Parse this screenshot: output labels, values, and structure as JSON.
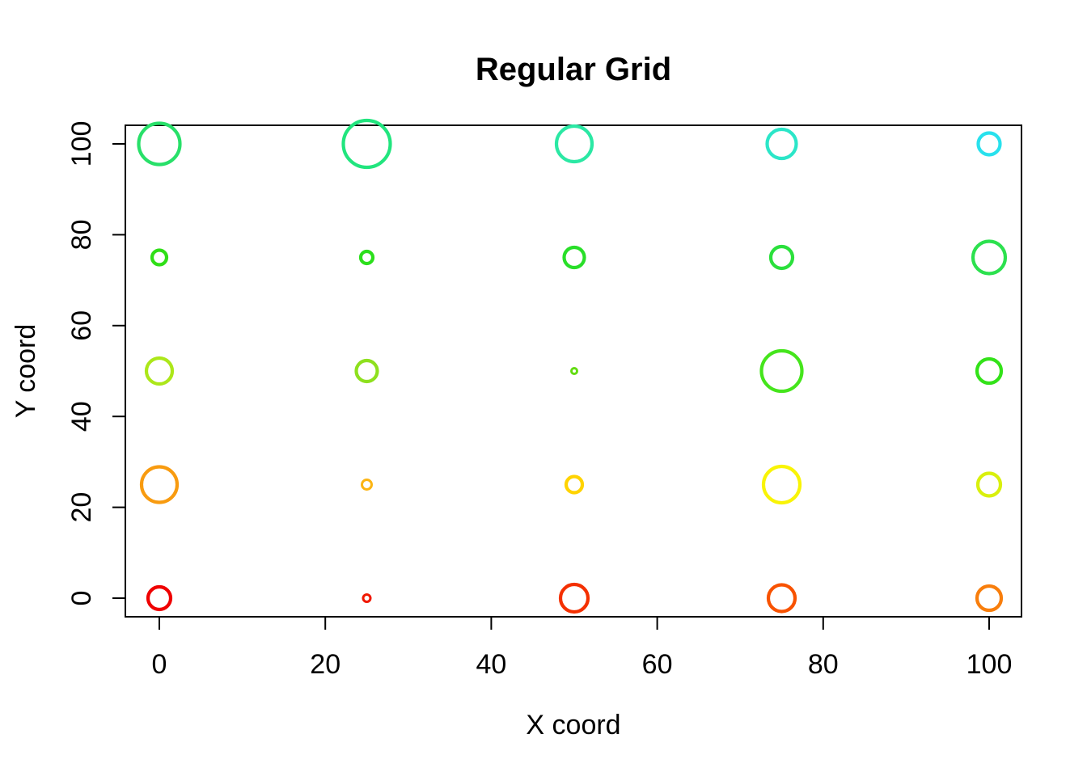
{
  "figure": {
    "title": "Regular Grid",
    "xlabel": "X coord",
    "ylabel": "Y coord",
    "background_color": "#FFFFFF",
    "axis_color": "#000000"
  },
  "chart_data": {
    "type": "scatter",
    "subtype": "bubble",
    "title": "Regular Grid",
    "xlabel": "X coord",
    "ylabel": "Y coord",
    "xlim": [
      0,
      100
    ],
    "ylim": [
      0,
      100
    ],
    "x_ticks": [
      0,
      20,
      40,
      60,
      80,
      100
    ],
    "y_ticks": [
      0,
      20,
      40,
      60,
      80,
      100
    ],
    "grid": false,
    "legend": "none",
    "marker": "open-circle",
    "points": [
      {
        "x": 0,
        "y": 0,
        "radius_px": 14,
        "color": "#EF0000"
      },
      {
        "x": 25,
        "y": 0,
        "radius_px": 4.5,
        "color": "#F01800"
      },
      {
        "x": 50,
        "y": 0,
        "radius_px": 17,
        "color": "#F43000"
      },
      {
        "x": 75,
        "y": 0,
        "radius_px": 16.5,
        "color": "#F85200"
      },
      {
        "x": 100,
        "y": 0,
        "radius_px": 15,
        "color": "#F87E0C"
      },
      {
        "x": 0,
        "y": 25,
        "radius_px": 22,
        "color": "#F89B10"
      },
      {
        "x": 25,
        "y": 25,
        "radius_px": 6,
        "color": "#FCB514"
      },
      {
        "x": 50,
        "y": 25,
        "radius_px": 10,
        "color": "#FFD300"
      },
      {
        "x": 75,
        "y": 25,
        "radius_px": 22.5,
        "color": "#F9F406"
      },
      {
        "x": 100,
        "y": 25,
        "radius_px": 14,
        "color": "#D9F00D"
      },
      {
        "x": 0,
        "y": 50,
        "radius_px": 16,
        "color": "#ACE71A"
      },
      {
        "x": 25,
        "y": 50,
        "radius_px": 13,
        "color": "#8EE01E"
      },
      {
        "x": 50,
        "y": 50,
        "radius_px": 3.5,
        "color": "#63DC12"
      },
      {
        "x": 75,
        "y": 50,
        "radius_px": 25,
        "color": "#45E51C"
      },
      {
        "x": 100,
        "y": 50,
        "radius_px": 15,
        "color": "#33E219"
      },
      {
        "x": 0,
        "y": 75,
        "radius_px": 9,
        "color": "#2FDF17"
      },
      {
        "x": 25,
        "y": 75,
        "radius_px": 7.5,
        "color": "#2CDF1C"
      },
      {
        "x": 50,
        "y": 75,
        "radius_px": 12.5,
        "color": "#29DF29"
      },
      {
        "x": 75,
        "y": 75,
        "radius_px": 13.5,
        "color": "#2BE03C"
      },
      {
        "x": 100,
        "y": 75,
        "radius_px": 20,
        "color": "#2CE14E"
      },
      {
        "x": 0,
        "y": 100,
        "radius_px": 25.5,
        "color": "#28E069"
      },
      {
        "x": 25,
        "y": 100,
        "radius_px": 29,
        "color": "#21E57E"
      },
      {
        "x": 50,
        "y": 100,
        "radius_px": 22,
        "color": "#2BE8A4"
      },
      {
        "x": 75,
        "y": 100,
        "radius_px": 18,
        "color": "#2BE6C8"
      },
      {
        "x": 100,
        "y": 100,
        "radius_px": 13.5,
        "color": "#28E1ED"
      }
    ]
  }
}
